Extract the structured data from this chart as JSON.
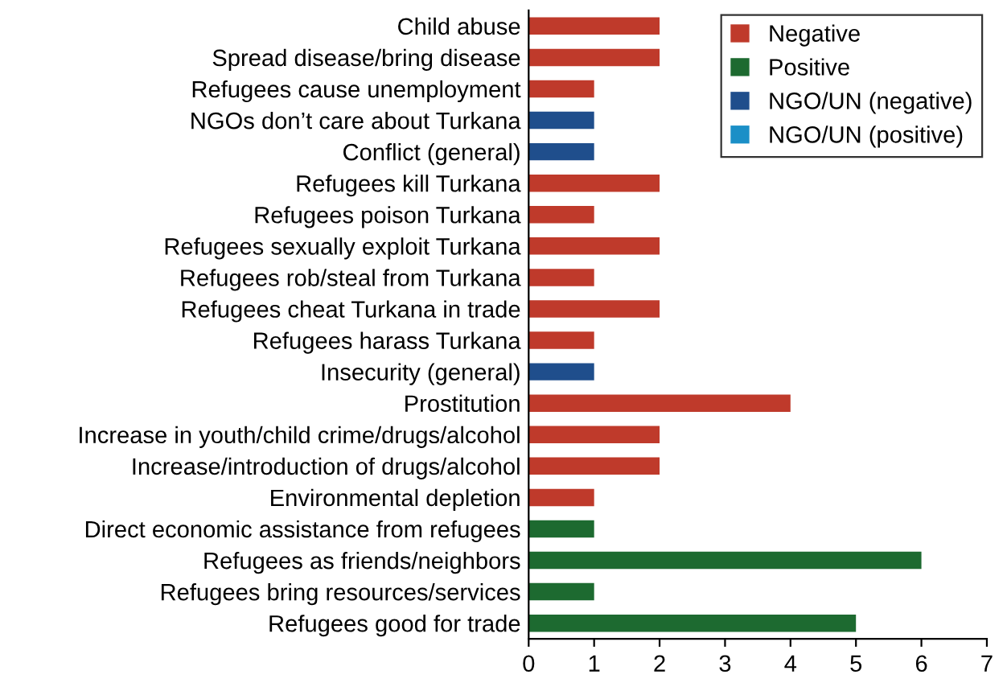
{
  "chart_data": {
    "type": "bar",
    "orientation": "horizontal",
    "categories": [
      "Child abuse",
      "Spread disease/bring disease",
      "Refugees cause unemployment",
      "NGOs don’t care about Turkana",
      "Conflict (general)",
      "Refugees kill Turkana",
      "Refugees poison Turkana",
      "Refugees sexually exploit Turkana",
      "Refugees rob/steal from Turkana",
      "Refugees cheat Turkana in trade",
      "Refugees harass Turkana",
      "Insecurity (general)",
      "Prostitution",
      "Increase in youth/child crime/drugs/alcohol",
      "Increase/introduction of drugs/alcohol",
      "Environmental depletion",
      "Direct economic assistance from refugees",
      "Refugees as friends/neighbors",
      "Refugees bring resources/services",
      "Refugees good for trade"
    ],
    "series": [
      {
        "name": "Negative",
        "color": "#bf3a2b",
        "values": [
          2,
          2,
          1,
          null,
          null,
          2,
          1,
          2,
          1,
          2,
          1,
          null,
          4,
          2,
          2,
          1,
          null,
          null,
          null,
          null
        ]
      },
      {
        "name": "Positive",
        "color": "#1d6a30",
        "values": [
          null,
          null,
          null,
          null,
          null,
          null,
          null,
          null,
          null,
          null,
          null,
          null,
          null,
          null,
          null,
          null,
          1,
          6,
          1,
          5
        ]
      },
      {
        "name": "NGO/UN (negative)",
        "color": "#1f4e8c",
        "values": [
          null,
          null,
          null,
          1,
          1,
          null,
          null,
          null,
          null,
          null,
          null,
          1,
          null,
          null,
          null,
          null,
          null,
          null,
          null,
          null
        ]
      },
      {
        "name": "NGO/UN (positive)",
        "color": "#1b8fc7",
        "values": [
          null,
          null,
          null,
          null,
          null,
          null,
          null,
          null,
          null,
          null,
          null,
          null,
          null,
          null,
          null,
          null,
          null,
          null,
          null,
          null
        ]
      }
    ],
    "xlim": [
      0,
      7
    ],
    "xticks": [
      0,
      1,
      2,
      3,
      4,
      5,
      6,
      7
    ],
    "grid": false,
    "legend": "top right"
  }
}
